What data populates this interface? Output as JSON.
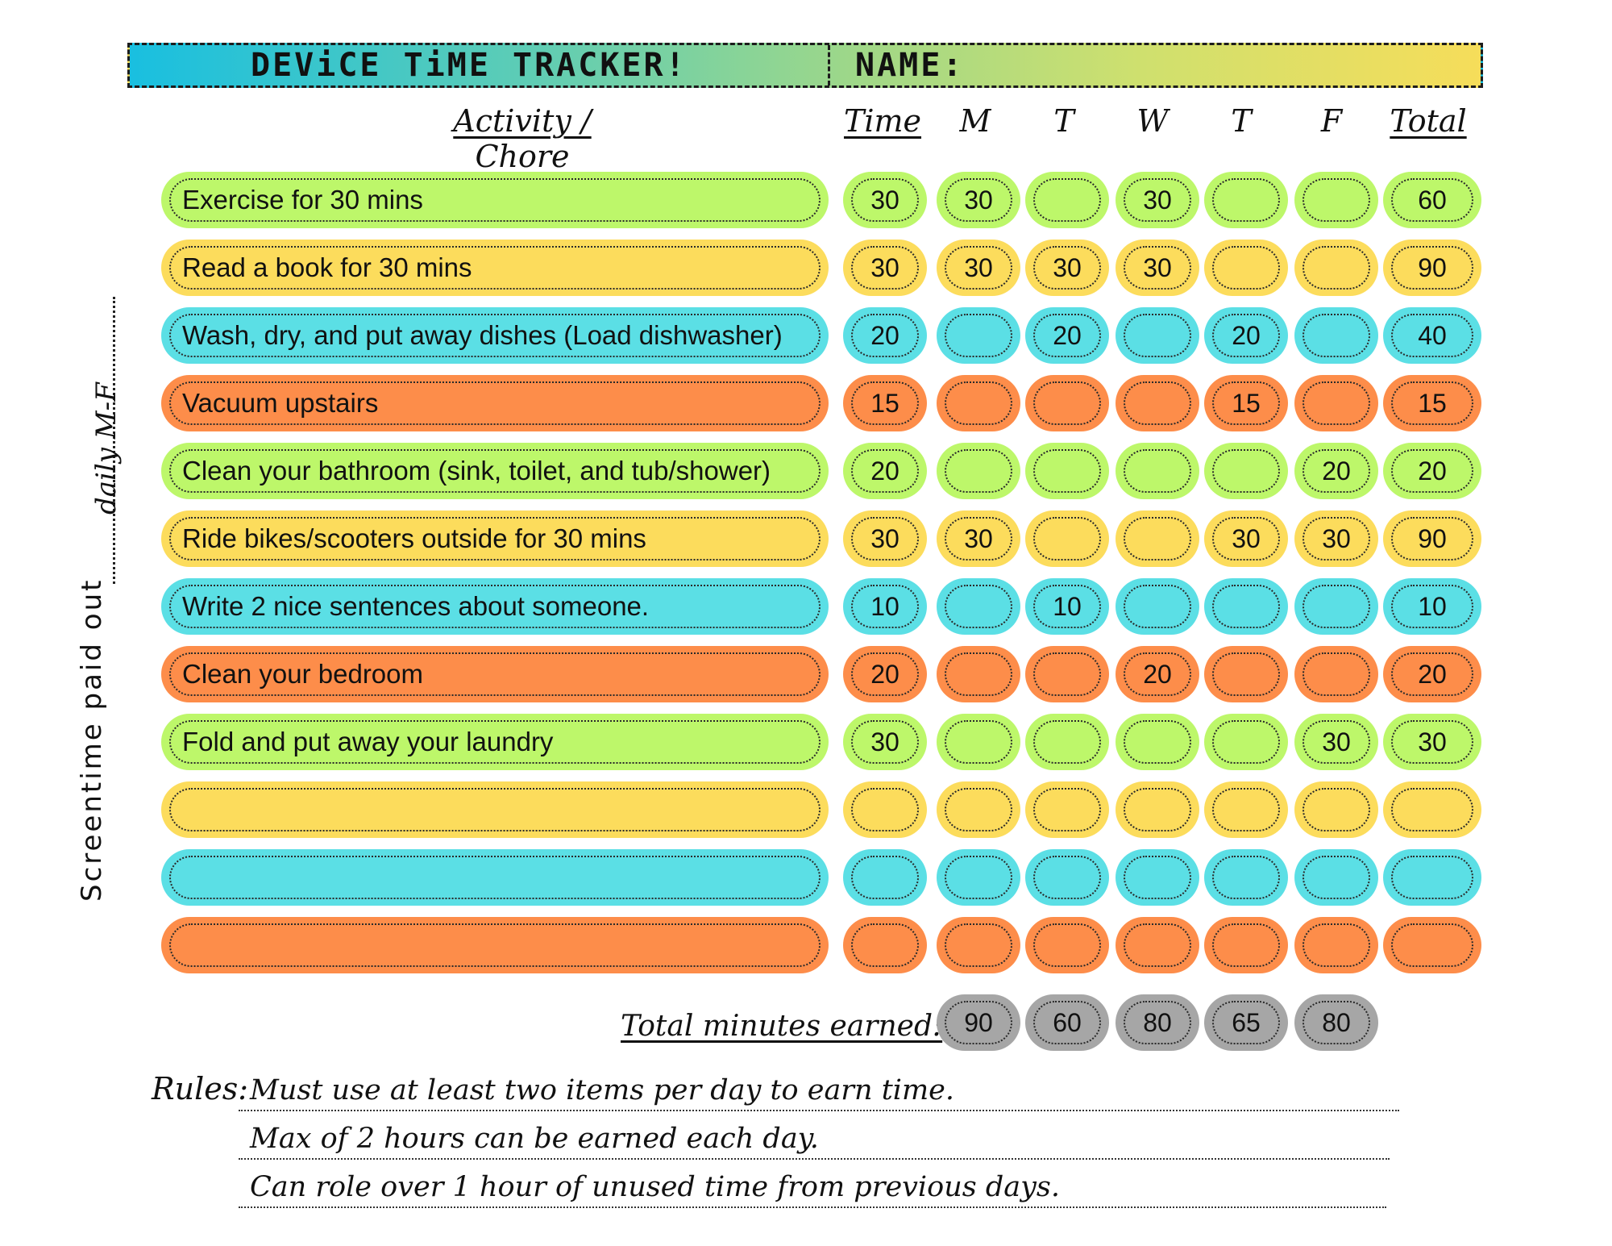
{
  "header": {
    "title": "DEViCE TiME TRACKER!",
    "name_label": "NAME:"
  },
  "columns": {
    "activity": "Activity / Chore",
    "time": "Time",
    "mon": "M",
    "tue": "T",
    "wed": "W",
    "thu": "T",
    "fri": "F",
    "total": "Total"
  },
  "side": {
    "paid_out": "Screentime paid out",
    "daily": "daily M-F"
  },
  "rows": [
    {
      "color": "#bdf76a",
      "activity": "Exercise for 30 mins",
      "time": "30",
      "m": "30",
      "t": "",
      "w": "30",
      "th": "",
      "f": "",
      "total": "60"
    },
    {
      "color": "#fcdc5c",
      "activity": "Read a book for 30 mins",
      "time": "30",
      "m": "30",
      "t": "30",
      "w": "30",
      "th": "",
      "f": "",
      "total": "90"
    },
    {
      "color": "#5bdfe5",
      "activity": "Wash, dry, and put away dishes (Load dishwasher)",
      "time": "20",
      "m": "",
      "t": "20",
      "w": "",
      "th": "20",
      "f": "",
      "total": "40"
    },
    {
      "color": "#fd8d4a",
      "activity": "Vacuum upstairs",
      "time": "15",
      "m": "",
      "t": "",
      "w": "",
      "th": "15",
      "f": "",
      "total": "15"
    },
    {
      "color": "#bdf76a",
      "activity": "Clean your bathroom (sink, toilet, and tub/shower)",
      "time": "20",
      "m": "",
      "t": "",
      "w": "",
      "th": "",
      "f": "20",
      "total": "20"
    },
    {
      "color": "#fcdc5c",
      "activity": "Ride bikes/scooters outside for 30 mins",
      "time": "30",
      "m": "30",
      "t": "",
      "w": "",
      "th": "30",
      "f": "30",
      "total": "90"
    },
    {
      "color": "#5bdfe5",
      "activity": "Write 2 nice sentences about someone.",
      "time": "10",
      "m": "",
      "t": "10",
      "w": "",
      "th": "",
      "f": "",
      "total": "10"
    },
    {
      "color": "#fd8d4a",
      "activity": "Clean your bedroom",
      "time": "20",
      "m": "",
      "t": "",
      "w": "20",
      "th": "",
      "f": "",
      "total": "20"
    },
    {
      "color": "#bdf76a",
      "activity": "Fold and put away your laundry",
      "time": "30",
      "m": "",
      "t": "",
      "w": "",
      "th": "",
      "f": "30",
      "total": "30"
    },
    {
      "color": "#fcdc5c",
      "activity": "",
      "time": "",
      "m": "",
      "t": "",
      "w": "",
      "th": "",
      "f": "",
      "total": ""
    },
    {
      "color": "#5bdfe5",
      "activity": "",
      "time": "",
      "m": "",
      "t": "",
      "w": "",
      "th": "",
      "f": "",
      "total": ""
    },
    {
      "color": "#fd8d4a",
      "activity": "",
      "time": "",
      "m": "",
      "t": "",
      "w": "",
      "th": "",
      "f": "",
      "total": ""
    }
  ],
  "totals": {
    "label": "Total minutes earned:",
    "m": "90",
    "t": "60",
    "w": "80",
    "th": "65",
    "f": "80"
  },
  "rules": {
    "label": "Rules:",
    "items": [
      "Must use at least two items per day to earn time.",
      "Max of 2 hours can be earned each day.",
      "Can role over 1 hour of unused time from previous days."
    ]
  }
}
